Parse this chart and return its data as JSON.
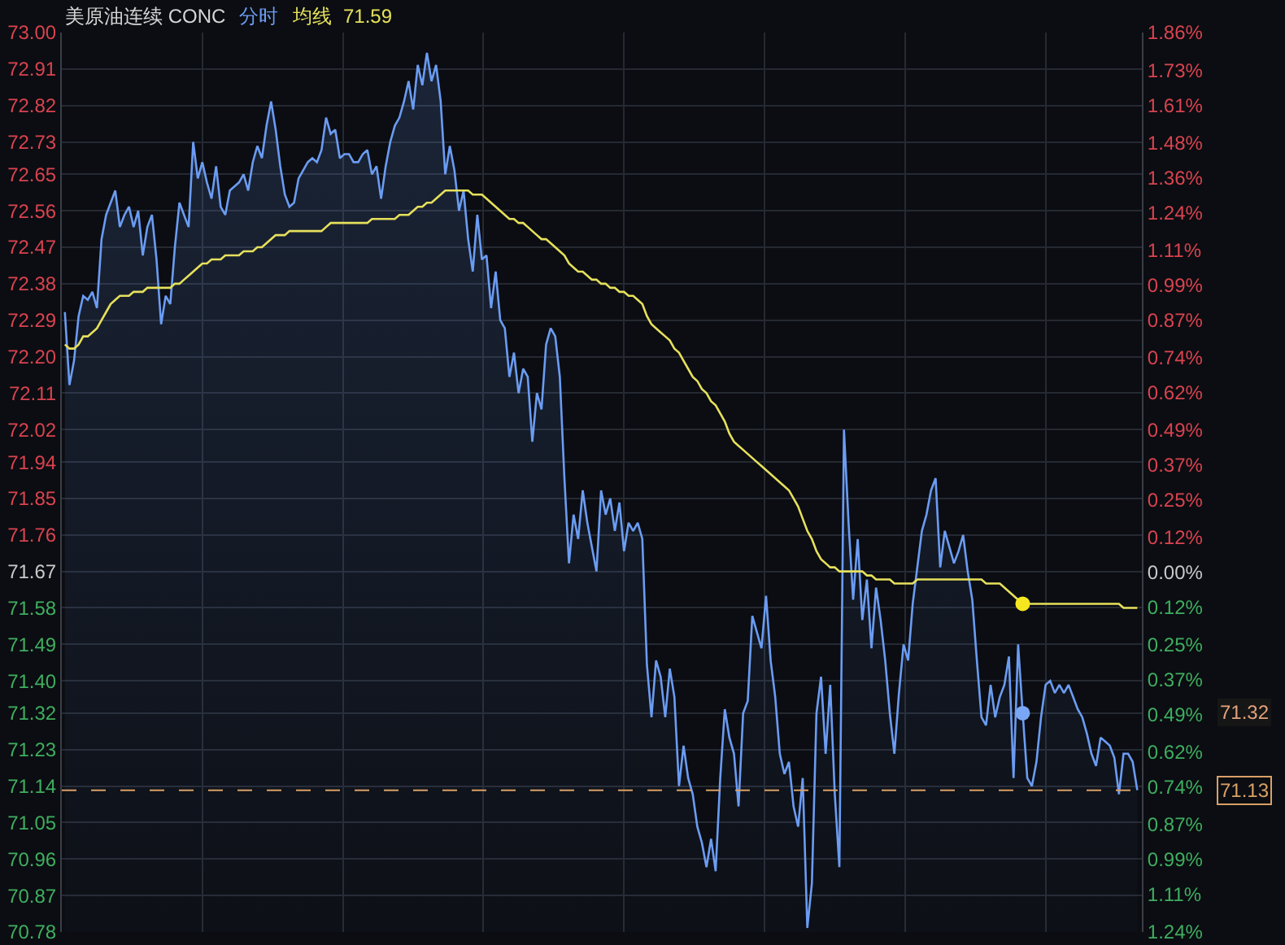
{
  "chart_data": {
    "type": "area",
    "title": "美原油连续 CONC",
    "categories": [
      null,
      null,
      null,
      null,
      null,
      null,
      null,
      null,
      null,
      null,
      null,
      null,
      null,
      null,
      null,
      null,
      null,
      null,
      null,
      null,
      null,
      null,
      null,
      null,
      null,
      null,
      null,
      null,
      null,
      null,
      null,
      null,
      null,
      null,
      null,
      null,
      null,
      null,
      null,
      null,
      null,
      null,
      null,
      null,
      null,
      null,
      null,
      null,
      null,
      null,
      null,
      null,
      null,
      null,
      null,
      null,
      null,
      null,
      null,
      null,
      null,
      null,
      null,
      null,
      null,
      null,
      null,
      null,
      null,
      null,
      null,
      null,
      null,
      null,
      null,
      null,
      null,
      null,
      null,
      null,
      null,
      null,
      null,
      null,
      null,
      null,
      null,
      null,
      null,
      null,
      null,
      null,
      null,
      null,
      null,
      null,
      null,
      null,
      null,
      null,
      null,
      null,
      null,
      null,
      null,
      null,
      null,
      null,
      null,
      null,
      null,
      null,
      null,
      null,
      null,
      null,
      null,
      null,
      null,
      null,
      null,
      null,
      null,
      null,
      null,
      null,
      null,
      null,
      null,
      null,
      null,
      null,
      null,
      null,
      null,
      null,
      null,
      null,
      null,
      null,
      null,
      null,
      null,
      null,
      null,
      null,
      null,
      null,
      null,
      null,
      null,
      null,
      null,
      null,
      null,
      null,
      null,
      null,
      null,
      null,
      null,
      null,
      null,
      null,
      null,
      null,
      null,
      null,
      null,
      null,
      null,
      null,
      null,
      null,
      null,
      null,
      null,
      null,
      null,
      null,
      null,
      null,
      null,
      null,
      null,
      null,
      null,
      null,
      null,
      null,
      null,
      null,
      null,
      null,
      null,
      null,
      null,
      null,
      null,
      null,
      null,
      null,
      null,
      null,
      null,
      null,
      null,
      null,
      null,
      null,
      null,
      null,
      null,
      null,
      null,
      null,
      null,
      null,
      null,
      null,
      null,
      null,
      null,
      null,
      null,
      null,
      null,
      null,
      null,
      null,
      null,
      null,
      null,
      null,
      null
    ],
    "series": [
      {
        "name": "分时",
        "color": "#6b9cf2",
        "values": [
          72.31,
          72.13,
          72.19,
          72.3,
          72.35,
          72.34,
          72.36,
          72.32,
          72.49,
          72.55,
          72.58,
          72.61,
          72.52,
          72.55,
          72.57,
          72.52,
          72.56,
          72.45,
          72.52,
          72.55,
          72.44,
          72.28,
          72.35,
          72.33,
          72.47,
          72.58,
          72.55,
          72.52,
          72.73,
          72.64,
          72.68,
          72.63,
          72.59,
          72.67,
          72.57,
          72.55,
          72.61,
          72.62,
          72.63,
          72.65,
          72.61,
          72.68,
          72.72,
          72.69,
          72.77,
          72.83,
          72.76,
          72.67,
          72.6,
          72.57,
          72.58,
          72.64,
          72.66,
          72.68,
          72.69,
          72.68,
          72.71,
          72.79,
          72.75,
          72.76,
          72.69,
          72.7,
          72.7,
          72.68,
          72.68,
          72.7,
          72.71,
          72.65,
          72.67,
          72.59,
          72.67,
          72.73,
          72.77,
          72.79,
          72.83,
          72.88,
          72.81,
          72.92,
          72.87,
          72.95,
          72.88,
          72.92,
          72.83,
          72.65,
          72.72,
          72.66,
          72.56,
          72.61,
          72.49,
          72.41,
          72.55,
          72.44,
          72.45,
          72.32,
          72.41,
          72.29,
          72.27,
          72.15,
          72.21,
          72.11,
          72.17,
          72.15,
          71.99,
          72.11,
          72.07,
          72.23,
          72.27,
          72.25,
          72.15,
          71.9,
          71.69,
          71.81,
          71.75,
          71.87,
          71.79,
          71.73,
          71.67,
          71.87,
          71.81,
          71.85,
          71.77,
          71.84,
          71.72,
          71.79,
          71.77,
          71.79,
          71.75,
          71.44,
          71.31,
          71.45,
          71.41,
          71.31,
          71.43,
          71.36,
          71.14,
          71.24,
          71.16,
          71.12,
          71.04,
          71.0,
          70.94,
          71.01,
          70.93,
          71.16,
          71.33,
          71.26,
          71.22,
          71.09,
          71.32,
          71.35,
          71.56,
          71.52,
          71.48,
          71.61,
          71.45,
          71.36,
          71.22,
          71.17,
          71.2,
          71.09,
          71.04,
          71.16,
          70.79,
          70.9,
          71.32,
          71.41,
          71.22,
          71.39,
          71.12,
          70.94,
          72.02,
          71.79,
          71.6,
          71.75,
          71.55,
          71.65,
          71.48,
          71.63,
          71.55,
          71.45,
          71.32,
          71.22,
          71.37,
          71.49,
          71.45,
          71.59,
          71.68,
          71.77,
          71.81,
          71.87,
          71.9,
          71.68,
          71.77,
          71.73,
          71.69,
          71.72,
          71.76,
          71.67,
          71.6,
          71.45,
          71.31,
          71.29,
          71.39,
          71.31,
          71.36,
          71.39,
          71.46,
          71.16,
          71.49,
          71.32,
          71.16,
          71.14,
          71.2,
          71.31,
          71.39,
          71.4,
          71.37,
          71.39,
          71.37,
          71.39,
          71.36,
          71.33,
          71.31,
          71.27,
          71.22,
          71.19,
          71.26,
          71.25,
          71.24,
          71.21,
          71.12,
          71.22,
          71.22,
          71.2,
          71.13
        ]
      },
      {
        "name": "均线",
        "type": "line",
        "color": "#e6e05c",
        "values": [
          72.23,
          72.22,
          72.22,
          72.23,
          72.25,
          72.25,
          72.26,
          72.27,
          72.29,
          72.31,
          72.33,
          72.34,
          72.35,
          72.35,
          72.35,
          72.36,
          72.36,
          72.36,
          72.37,
          72.37,
          72.37,
          72.37,
          72.37,
          72.37,
          72.38,
          72.38,
          72.39,
          72.4,
          72.41,
          72.42,
          72.43,
          72.43,
          72.44,
          72.44,
          72.44,
          72.45,
          72.45,
          72.45,
          72.45,
          72.46,
          72.46,
          72.46,
          72.47,
          72.47,
          72.48,
          72.49,
          72.5,
          72.5,
          72.5,
          72.51,
          72.51,
          72.51,
          72.51,
          72.51,
          72.51,
          72.51,
          72.51,
          72.52,
          72.53,
          72.53,
          72.53,
          72.53,
          72.53,
          72.53,
          72.53,
          72.53,
          72.53,
          72.54,
          72.54,
          72.54,
          72.54,
          72.54,
          72.54,
          72.55,
          72.55,
          72.55,
          72.56,
          72.57,
          72.57,
          72.58,
          72.58,
          72.59,
          72.6,
          72.61,
          72.61,
          72.61,
          72.61,
          72.61,
          72.61,
          72.6,
          72.6,
          72.6,
          72.59,
          72.58,
          72.57,
          72.56,
          72.55,
          72.54,
          72.54,
          72.53,
          72.53,
          72.52,
          72.51,
          72.5,
          72.49,
          72.49,
          72.48,
          72.47,
          72.46,
          72.45,
          72.43,
          72.42,
          72.41,
          72.41,
          72.4,
          72.39,
          72.39,
          72.38,
          72.38,
          72.37,
          72.37,
          72.36,
          72.36,
          72.35,
          72.35,
          72.34,
          72.33,
          72.3,
          72.28,
          72.27,
          72.26,
          72.25,
          72.24,
          72.22,
          72.21,
          72.19,
          72.17,
          72.15,
          72.14,
          72.12,
          72.11,
          72.09,
          72.08,
          72.06,
          72.04,
          72.01,
          71.99,
          71.98,
          71.97,
          71.96,
          71.95,
          71.94,
          71.93,
          71.92,
          71.91,
          71.9,
          71.89,
          71.88,
          71.87,
          71.85,
          71.83,
          71.8,
          71.77,
          71.75,
          71.72,
          71.7,
          71.69,
          71.68,
          71.68,
          71.67,
          71.67,
          71.67,
          71.67,
          71.67,
          71.67,
          71.66,
          71.66,
          71.65,
          71.65,
          71.65,
          71.65,
          71.64,
          71.64,
          71.64,
          71.64,
          71.64,
          71.65,
          71.65,
          71.65,
          71.65,
          71.65,
          71.65,
          71.65,
          71.65,
          71.65,
          71.65,
          71.65,
          71.65,
          71.65,
          71.65,
          71.65,
          71.64,
          71.64,
          71.64,
          71.64,
          71.63,
          71.62,
          71.61,
          71.6,
          71.59,
          71.59,
          71.59,
          71.59,
          71.59,
          71.59,
          71.59,
          71.59,
          71.59,
          71.59,
          71.59,
          71.59,
          71.59,
          71.59,
          71.59,
          71.59,
          71.59,
          71.59,
          71.59,
          71.59,
          71.59,
          71.59,
          71.58,
          71.58,
          71.58,
          71.58
        ]
      },
      {
        "type": "scatter",
        "marker": "circle",
        "color": "#7aa7f5",
        "values": [
          null,
          null,
          null,
          null,
          null,
          null,
          null,
          null,
          null,
          null,
          null,
          null,
          null,
          null,
          null,
          null,
          null,
          null,
          null,
          null,
          null,
          null,
          null,
          null,
          null,
          null,
          null,
          null,
          null,
          null,
          null,
          null,
          null,
          null,
          null,
          null,
          null,
          null,
          null,
          null,
          null,
          null,
          null,
          null,
          null,
          null,
          null,
          null,
          null,
          null,
          null,
          null,
          null,
          null,
          null,
          null,
          null,
          null,
          null,
          null,
          null,
          null,
          null,
          null,
          null,
          null,
          null,
          null,
          null,
          null,
          null,
          null,
          null,
          null,
          null,
          null,
          null,
          null,
          null,
          null,
          null,
          null,
          null,
          null,
          null,
          null,
          null,
          null,
          null,
          null,
          null,
          null,
          null,
          null,
          null,
          null,
          null,
          null,
          null,
          null,
          null,
          null,
          null,
          null,
          null,
          null,
          null,
          null,
          null,
          null,
          null,
          null,
          null,
          null,
          null,
          null,
          null,
          null,
          null,
          null,
          null,
          null,
          null,
          null,
          null,
          null,
          null,
          null,
          null,
          null,
          null,
          null,
          null,
          null,
          null,
          null,
          null,
          null,
          null,
          null,
          null,
          null,
          null,
          null,
          null,
          null,
          null,
          null,
          null,
          null,
          null,
          null,
          null,
          null,
          null,
          null,
          null,
          null,
          null,
          null,
          null,
          null,
          null,
          null,
          null,
          null,
          null,
          null,
          null,
          null,
          null,
          null,
          null,
          null,
          null,
          null,
          null,
          null,
          null,
          null,
          null,
          null,
          null,
          null,
          null,
          null,
          null,
          null,
          null,
          null,
          null,
          null,
          null,
          null,
          null,
          null,
          null,
          null,
          null,
          null,
          null,
          null,
          null,
          null,
          null,
          null,
          null,
          null,
          null,
          71.32,
          null,
          null,
          null,
          null,
          null,
          null,
          null,
          null,
          null,
          null,
          null,
          null,
          null,
          null,
          null,
          null,
          null,
          null,
          null,
          null,
          null,
          null,
          null,
          null,
          null
        ]
      },
      {
        "type": "scatter",
        "marker": "circle",
        "color": "#f5e71f",
        "values": [
          null,
          null,
          null,
          null,
          null,
          null,
          null,
          null,
          null,
          null,
          null,
          null,
          null,
          null,
          null,
          null,
          null,
          null,
          null,
          null,
          null,
          null,
          null,
          null,
          null,
          null,
          null,
          null,
          null,
          null,
          null,
          null,
          null,
          null,
          null,
          null,
          null,
          null,
          null,
          null,
          null,
          null,
          null,
          null,
          null,
          null,
          null,
          null,
          null,
          null,
          null,
          null,
          null,
          null,
          null,
          null,
          null,
          null,
          null,
          null,
          null,
          null,
          null,
          null,
          null,
          null,
          null,
          null,
          null,
          null,
          null,
          null,
          null,
          null,
          null,
          null,
          null,
          null,
          null,
          null,
          null,
          null,
          null,
          null,
          null,
          null,
          null,
          null,
          null,
          null,
          null,
          null,
          null,
          null,
          null,
          null,
          null,
          null,
          null,
          null,
          null,
          null,
          null,
          null,
          null,
          null,
          null,
          null,
          null,
          null,
          null,
          null,
          null,
          null,
          null,
          null,
          null,
          null,
          null,
          null,
          null,
          null,
          null,
          null,
          null,
          null,
          null,
          null,
          null,
          null,
          null,
          null,
          null,
          null,
          null,
          null,
          null,
          null,
          null,
          null,
          null,
          null,
          null,
          null,
          null,
          null,
          null,
          null,
          null,
          null,
          null,
          null,
          null,
          null,
          null,
          null,
          null,
          null,
          null,
          null,
          null,
          null,
          null,
          null,
          null,
          null,
          null,
          null,
          null,
          null,
          null,
          null,
          null,
          null,
          null,
          null,
          null,
          null,
          null,
          null,
          null,
          null,
          null,
          null,
          null,
          null,
          null,
          null,
          null,
          null,
          null,
          null,
          null,
          null,
          null,
          null,
          null,
          null,
          null,
          null,
          null,
          null,
          null,
          null,
          null,
          null,
          null,
          null,
          null,
          71.59,
          null,
          null,
          null,
          null,
          null,
          null,
          null,
          null,
          null,
          null,
          null,
          null,
          null,
          null,
          null,
          null,
          null,
          null,
          null,
          null,
          null,
          null,
          null,
          null,
          null
        ]
      }
    ],
    "ylim": [
      70.78,
      73.0
    ],
    "yticks": [
      {
        "value": 73.0,
        "label": "73.00"
      },
      {
        "value": 72.91,
        "label": "72.91"
      },
      {
        "value": 72.82,
        "label": "72.82"
      },
      {
        "value": 72.73,
        "label": "72.73"
      },
      {
        "value": 72.65,
        "label": "72.65"
      },
      {
        "value": 72.56,
        "label": "72.56"
      },
      {
        "value": 72.47,
        "label": "72.47"
      },
      {
        "value": 72.38,
        "label": "72.38"
      },
      {
        "value": 72.29,
        "label": "72.29"
      },
      {
        "value": 72.2,
        "label": "72.20"
      },
      {
        "value": 72.11,
        "label": "72.11"
      },
      {
        "value": 72.02,
        "label": "72.02"
      },
      {
        "value": 71.94,
        "label": "71.94"
      },
      {
        "value": 71.85,
        "label": "71.85"
      },
      {
        "value": 71.76,
        "label": "71.76"
      },
      {
        "value": 71.67,
        "label": "71.67"
      },
      {
        "value": 71.58,
        "label": "71.58"
      },
      {
        "value": 71.49,
        "label": "71.49"
      },
      {
        "value": 71.4,
        "label": "71.40"
      },
      {
        "value": 71.32,
        "label": "71.32"
      },
      {
        "value": 71.23,
        "label": "71.23"
      },
      {
        "value": 71.14,
        "label": "71.14"
      },
      {
        "value": 71.05,
        "label": "71.05"
      },
      {
        "value": 70.96,
        "label": "70.96"
      },
      {
        "value": 70.87,
        "label": "70.87"
      },
      {
        "value": 70.78,
        "label": "70.78"
      }
    ],
    "y2lim": [
      -1.24,
      1.86
    ],
    "y2ticks": [
      {
        "value": 1.86,
        "label": "1.86%"
      },
      {
        "value": 1.73,
        "label": "1.73%"
      },
      {
        "value": 1.61,
        "label": "1.61%"
      },
      {
        "value": 1.48,
        "label": "1.48%"
      },
      {
        "value": 1.36,
        "label": "1.36%"
      },
      {
        "value": 1.24,
        "label": "1.24%"
      },
      {
        "value": 1.11,
        "label": "1.11%"
      },
      {
        "value": 0.99,
        "label": "0.99%"
      },
      {
        "value": 0.87,
        "label": "0.87%"
      },
      {
        "value": 0.74,
        "label": "0.74%"
      },
      {
        "value": 0.62,
        "label": "0.62%"
      },
      {
        "value": 0.49,
        "label": "0.49%"
      },
      {
        "value": 0.37,
        "label": "0.37%"
      },
      {
        "value": 0.25,
        "label": "0.25%"
      },
      {
        "value": 0.12,
        "label": "0.12%"
      },
      {
        "value": 0,
        "label": "0.00%"
      },
      {
        "value": -0.12,
        "label": "0.12%"
      },
      {
        "value": -0.25,
        "label": "0.25%"
      },
      {
        "value": -0.37,
        "label": "0.37%"
      },
      {
        "value": -0.49,
        "label": "0.49%"
      },
      {
        "value": -0.62,
        "label": "0.62%"
      },
      {
        "value": -0.74,
        "label": "0.74%"
      },
      {
        "value": -0.87,
        "label": "0.87%"
      },
      {
        "value": -0.99,
        "label": "0.99%"
      },
      {
        "value": -1.11,
        "label": "1.11%"
      },
      {
        "value": -1.24,
        "label": "1.24%"
      }
    ],
    "ref_lines": [
      {
        "axis": "y",
        "value": 71.13,
        "label": "71.13",
        "color": "#d9a066",
        "line_style": "dashed"
      }
    ],
    "annotations": [
      "71.59",
      "71.32"
    ],
    "grid": true
  }
}
